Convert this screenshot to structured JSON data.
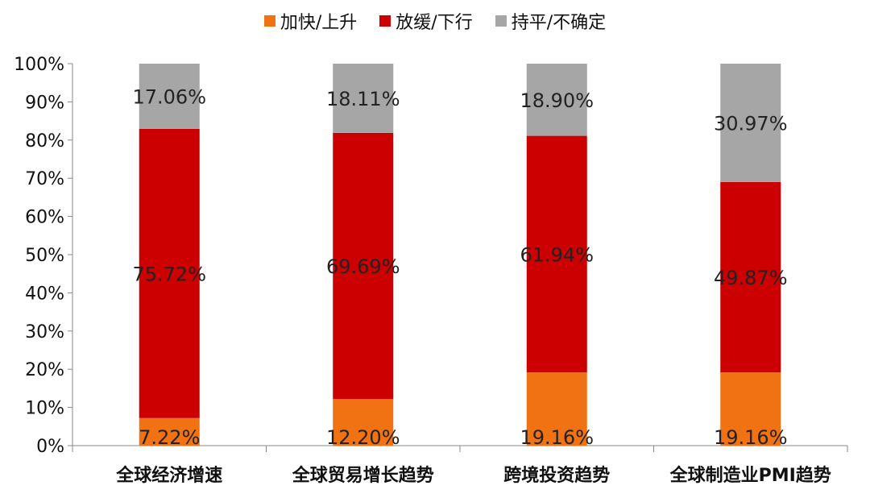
{
  "chart_data": {
    "type": "bar",
    "stacked": true,
    "categories": [
      "全球经济增速",
      "全球贸易增长趋势",
      "跨境投资趋势",
      "全球制造业PMI趋势"
    ],
    "series": [
      {
        "name": "加快/上升",
        "color": "#f07212",
        "values": [
          7.22,
          12.2,
          19.16,
          19.16
        ],
        "labels": [
          "7.22%",
          "12.20%",
          "19.16%",
          "19.16%"
        ]
      },
      {
        "name": "放缓/下行",
        "color": "#cc0000",
        "values": [
          75.72,
          69.69,
          61.94,
          49.87
        ],
        "labels": [
          "75.72%",
          "69.69%",
          "61.94%",
          "49.87%"
        ]
      },
      {
        "name": "持平/不确定",
        "color": "#a6a6a6",
        "values": [
          17.06,
          18.11,
          18.9,
          30.97
        ],
        "labels": [
          "17.06%",
          "18.11%",
          "18.90%",
          "30.97%"
        ]
      }
    ],
    "yticks": [
      "0%",
      "10%",
      "20%",
      "30%",
      "40%",
      "50%",
      "60%",
      "70%",
      "80%",
      "90%",
      "100%"
    ],
    "ylim": [
      0,
      100
    ],
    "legend_position": "top",
    "grid": false
  }
}
